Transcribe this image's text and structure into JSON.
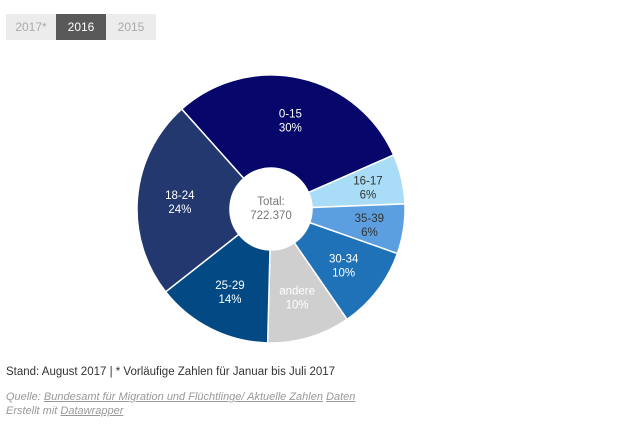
{
  "tabs": [
    {
      "label": "2017*",
      "active": false
    },
    {
      "label": "2016",
      "active": true
    },
    {
      "label": "2015",
      "active": false
    }
  ],
  "chart_data": {
    "type": "pie",
    "donut": true,
    "center_label": "Total:",
    "center_value": "722.370",
    "slices": [
      {
        "label": "0-15",
        "value": 30,
        "value_label": "30%",
        "color": "#06066b",
        "text_color": "#ffffff"
      },
      {
        "label": "16-17",
        "value": 6,
        "value_label": "6%",
        "color": "#a8dcf7",
        "text_color": "#333333"
      },
      {
        "label": "35-39",
        "value": 6,
        "value_label": "6%",
        "color": "#5b9fe0",
        "text_color": "#333333"
      },
      {
        "label": "30-34",
        "value": 10,
        "value_label": "10%",
        "color": "#1f72b8",
        "text_color": "#ffffff"
      },
      {
        "label": "andere",
        "value": 10,
        "value_label": "10%",
        "color": "#cfcfcf",
        "text_color": "#ffffff"
      },
      {
        "label": "25-29",
        "value": 14,
        "value_label": "14%",
        "color": "#034a85",
        "text_color": "#ffffff"
      },
      {
        "label": "18-24",
        "value": 24,
        "value_label": "24%",
        "color": "#22386e",
        "text_color": "#ffffff"
      }
    ]
  },
  "footer": {
    "note": "Stand: August 2017 | * Vorläufige Zahlen für Januar bis Juli 2017",
    "source_prefix": "Quelle:",
    "source_link": "Bundesamt für Migration und Flüchtlinge/ Aktuelle Zahlen",
    "data_link": "Daten",
    "created_prefix": "Erstellt mit",
    "created_link": "Datawrapper"
  }
}
